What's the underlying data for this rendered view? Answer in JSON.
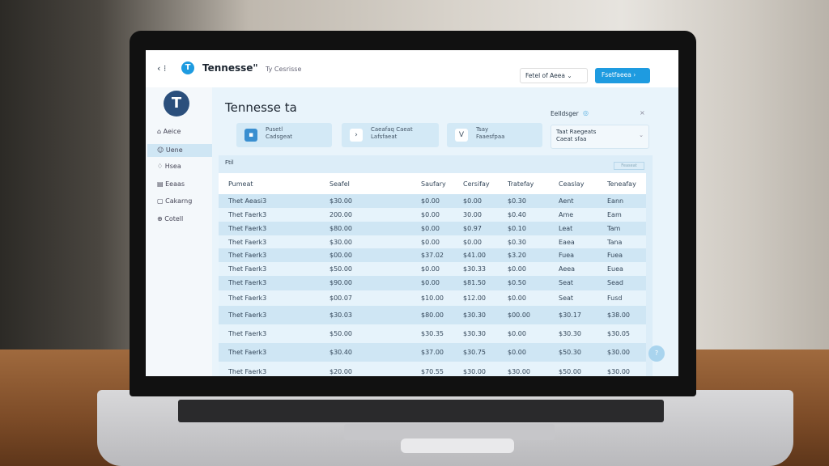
{
  "topbar": {
    "app_name": "Tennesse\"",
    "subtitle": "Ty Cesrisse",
    "dropdown": "Fetel of Aeea",
    "primary_button": "Fsetfaeea"
  },
  "sidebar": {
    "items": [
      {
        "label": "Aeice"
      },
      {
        "label": "Uene"
      },
      {
        "label": "Hsea"
      },
      {
        "label": "Eeaas"
      },
      {
        "label": "Cakarng"
      },
      {
        "label": "Cotell"
      }
    ]
  },
  "main": {
    "title": "Tennesse ta",
    "cards": [
      {
        "line1": "Pusetl",
        "line2": "Cadsgeat"
      },
      {
        "line1": "Caeafaq Caeat",
        "line2": "Lafsfaeat"
      },
      {
        "line1": "Tsay",
        "line2": "Faaesfpaa"
      }
    ],
    "filter": {
      "label": "Eelldsger",
      "value_line1": "Taat Raegeats",
      "value_line2": "Caeat sfaa"
    },
    "table_label": "Ftil",
    "table_button": "Feaseat",
    "columns": [
      "Pumeat",
      "Seafel",
      "Saufary",
      "Cersifay",
      "Tratefay",
      "Ceaslay",
      "Teneafay"
    ],
    "rows": [
      [
        "Thet Aeasi3",
        "$30.00",
        "$0.00",
        "$0.00",
        "$0.30",
        "Aent",
        "Eann"
      ],
      [
        "Thet Faerk3",
        "200.00",
        "$0.00",
        "30.00",
        "$0.40",
        "Ame",
        "Eam"
      ],
      [
        "Thet Faerk3",
        "$80.00",
        "$0.00",
        "$0.97",
        "$0.10",
        "Leat",
        "Tam"
      ],
      [
        "Thet Faerk3",
        "$30.00",
        "$0.00",
        "$0.00",
        "$0.30",
        "Eaea",
        "Tana"
      ],
      [
        "Thet Faerk3",
        "$00.00",
        "$37.02",
        "$41.00",
        "$3.20",
        "Fuea",
        "Fuea"
      ],
      [
        "Thet Faerk3",
        "$50.00",
        "$0.00",
        "$30.33",
        "$0.00",
        "Aeea",
        "Euea"
      ],
      [
        "Thet Faerk3",
        "$90.00",
        "$0.00",
        "$81.50",
        "$0.50",
        "Seat",
        "Sead"
      ],
      [
        "Thet Faerk3",
        "$00.07",
        "$10.00",
        "$12.00",
        "$0.00",
        "Seat",
        "Fusd"
      ],
      [
        "Thet Faerk3",
        "$30.03",
        "$80.00",
        "$30.30",
        "$00.00",
        "$30.17",
        "$38.00"
      ],
      [
        "Thet Faerk3",
        "$50.00",
        "$30.35",
        "$30.30",
        "$0.00",
        "$30.30",
        "$30.05"
      ],
      [
        "Thet Faerk3",
        "$30.40",
        "$37.00",
        "$30.75",
        "$0.00",
        "$50.30",
        "$30.00"
      ],
      [
        "Thet Faerk3",
        "$20.00",
        "$70.55",
        "$30.00",
        "$30.00",
        "$50.00",
        "$30.00"
      ]
    ]
  },
  "colors": {
    "accent": "#1e9be0",
    "logo": "#2b4f7c"
  }
}
